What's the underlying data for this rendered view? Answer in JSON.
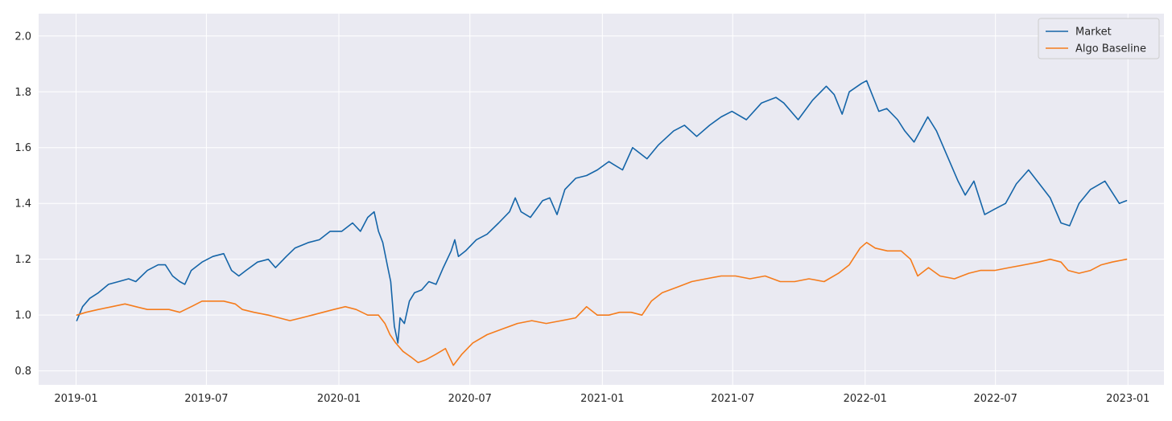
{
  "chart_data": {
    "type": "line",
    "title": "",
    "xlabel": "",
    "ylabel": "",
    "grid": true,
    "legend_position": "top-right",
    "xlim": [
      "2018-11-10",
      "2023-02-20"
    ],
    "ylim": [
      0.75,
      2.08
    ],
    "x_ticks": [
      "2019-01",
      "2019-07",
      "2020-01",
      "2020-07",
      "2021-01",
      "2021-07",
      "2022-01",
      "2022-07",
      "2023-01"
    ],
    "y_ticks": [
      0.8,
      1.0,
      1.2,
      1.4,
      1.6,
      1.8,
      2.0
    ],
    "series": [
      {
        "name": "Market",
        "color": "#1565a8",
        "points": [
          [
            "2019-01-02",
            0.98
          ],
          [
            "2019-01-10",
            1.03
          ],
          [
            "2019-01-20",
            1.06
          ],
          [
            "2019-02-01",
            1.08
          ],
          [
            "2019-02-15",
            1.11
          ],
          [
            "2019-03-01",
            1.12
          ],
          [
            "2019-03-15",
            1.13
          ],
          [
            "2019-03-25",
            1.12
          ],
          [
            "2019-04-10",
            1.16
          ],
          [
            "2019-04-25",
            1.18
          ],
          [
            "2019-05-05",
            1.18
          ],
          [
            "2019-05-15",
            1.14
          ],
          [
            "2019-05-25",
            1.12
          ],
          [
            "2019-06-01",
            1.11
          ],
          [
            "2019-06-10",
            1.16
          ],
          [
            "2019-06-25",
            1.19
          ],
          [
            "2019-07-10",
            1.21
          ],
          [
            "2019-07-25",
            1.22
          ],
          [
            "2019-08-05",
            1.16
          ],
          [
            "2019-08-15",
            1.14
          ],
          [
            "2019-08-25",
            1.16
          ],
          [
            "2019-09-10",
            1.19
          ],
          [
            "2019-09-25",
            1.2
          ],
          [
            "2019-10-05",
            1.17
          ],
          [
            "2019-10-20",
            1.21
          ],
          [
            "2019-11-01",
            1.24
          ],
          [
            "2019-11-20",
            1.26
          ],
          [
            "2019-12-05",
            1.27
          ],
          [
            "2019-12-20",
            1.3
          ],
          [
            "2020-01-05",
            1.3
          ],
          [
            "2020-01-20",
            1.33
          ],
          [
            "2020-01-31",
            1.3
          ],
          [
            "2020-02-10",
            1.35
          ],
          [
            "2020-02-19",
            1.37
          ],
          [
            "2020-02-25",
            1.3
          ],
          [
            "2020-03-02",
            1.26
          ],
          [
            "2020-03-09",
            1.17
          ],
          [
            "2020-03-13",
            1.12
          ],
          [
            "2020-03-18",
            0.96
          ],
          [
            "2020-03-23",
            0.9
          ],
          [
            "2020-03-26",
            0.99
          ],
          [
            "2020-04-01",
            0.97
          ],
          [
            "2020-04-08",
            1.05
          ],
          [
            "2020-04-15",
            1.08
          ],
          [
            "2020-04-25",
            1.09
          ],
          [
            "2020-05-05",
            1.12
          ],
          [
            "2020-05-15",
            1.11
          ],
          [
            "2020-05-25",
            1.17
          ],
          [
            "2020-06-05",
            1.23
          ],
          [
            "2020-06-10",
            1.27
          ],
          [
            "2020-06-15",
            1.21
          ],
          [
            "2020-06-25",
            1.23
          ],
          [
            "2020-07-10",
            1.27
          ],
          [
            "2020-07-25",
            1.29
          ],
          [
            "2020-08-10",
            1.33
          ],
          [
            "2020-08-25",
            1.37
          ],
          [
            "2020-09-02",
            1.42
          ],
          [
            "2020-09-10",
            1.37
          ],
          [
            "2020-09-23",
            1.35
          ],
          [
            "2020-10-10",
            1.41
          ],
          [
            "2020-10-20",
            1.42
          ],
          [
            "2020-10-30",
            1.36
          ],
          [
            "2020-11-10",
            1.45
          ],
          [
            "2020-11-25",
            1.49
          ],
          [
            "2020-12-10",
            1.5
          ],
          [
            "2020-12-25",
            1.52
          ],
          [
            "2021-01-10",
            1.55
          ],
          [
            "2021-01-29",
            1.52
          ],
          [
            "2021-02-12",
            1.6
          ],
          [
            "2021-03-04",
            1.56
          ],
          [
            "2021-03-20",
            1.61
          ],
          [
            "2021-04-10",
            1.66
          ],
          [
            "2021-04-25",
            1.68
          ],
          [
            "2021-05-12",
            1.64
          ],
          [
            "2021-05-30",
            1.68
          ],
          [
            "2021-06-15",
            1.71
          ],
          [
            "2021-06-30",
            1.73
          ],
          [
            "2021-07-20",
            1.7
          ],
          [
            "2021-08-10",
            1.76
          ],
          [
            "2021-08-30",
            1.78
          ],
          [
            "2021-09-10",
            1.76
          ],
          [
            "2021-09-30",
            1.7
          ],
          [
            "2021-10-20",
            1.77
          ],
          [
            "2021-11-08",
            1.82
          ],
          [
            "2021-11-19",
            1.79
          ],
          [
            "2021-11-30",
            1.72
          ],
          [
            "2021-12-10",
            1.8
          ],
          [
            "2021-12-27",
            1.83
          ],
          [
            "2022-01-03",
            1.84
          ],
          [
            "2022-01-20",
            1.73
          ],
          [
            "2022-01-31",
            1.74
          ],
          [
            "2022-02-15",
            1.7
          ],
          [
            "2022-02-25",
            1.66
          ],
          [
            "2022-03-10",
            1.62
          ],
          [
            "2022-03-29",
            1.71
          ],
          [
            "2022-04-10",
            1.66
          ],
          [
            "2022-04-25",
            1.57
          ],
          [
            "2022-05-10",
            1.48
          ],
          [
            "2022-05-20",
            1.43
          ],
          [
            "2022-06-01",
            1.48
          ],
          [
            "2022-06-16",
            1.36
          ],
          [
            "2022-06-30",
            1.38
          ],
          [
            "2022-07-15",
            1.4
          ],
          [
            "2022-07-30",
            1.47
          ],
          [
            "2022-08-16",
            1.52
          ],
          [
            "2022-08-31",
            1.47
          ],
          [
            "2022-09-15",
            1.42
          ],
          [
            "2022-09-30",
            1.33
          ],
          [
            "2022-10-12",
            1.32
          ],
          [
            "2022-10-25",
            1.4
          ],
          [
            "2022-11-10",
            1.45
          ],
          [
            "2022-11-30",
            1.48
          ],
          [
            "2022-12-10",
            1.44
          ],
          [
            "2022-12-20",
            1.4
          ],
          [
            "2022-12-30",
            1.41
          ]
        ]
      },
      {
        "name": "Algo Baseline",
        "color": "#f57c1c",
        "points": [
          [
            "2019-01-02",
            1.0
          ],
          [
            "2019-01-15",
            1.01
          ],
          [
            "2019-02-01",
            1.02
          ],
          [
            "2019-02-20",
            1.03
          ],
          [
            "2019-03-10",
            1.04
          ],
          [
            "2019-03-25",
            1.03
          ],
          [
            "2019-04-10",
            1.02
          ],
          [
            "2019-04-25",
            1.02
          ],
          [
            "2019-05-10",
            1.02
          ],
          [
            "2019-05-25",
            1.01
          ],
          [
            "2019-06-10",
            1.03
          ],
          [
            "2019-06-25",
            1.05
          ],
          [
            "2019-07-10",
            1.05
          ],
          [
            "2019-07-25",
            1.05
          ],
          [
            "2019-08-10",
            1.04
          ],
          [
            "2019-08-20",
            1.02
          ],
          [
            "2019-09-05",
            1.01
          ],
          [
            "2019-09-25",
            1.0
          ],
          [
            "2019-10-10",
            0.99
          ],
          [
            "2019-10-25",
            0.98
          ],
          [
            "2019-11-10",
            0.99
          ],
          [
            "2019-11-25",
            1.0
          ],
          [
            "2019-12-10",
            1.01
          ],
          [
            "2019-12-25",
            1.02
          ],
          [
            "2020-01-10",
            1.03
          ],
          [
            "2020-01-25",
            1.02
          ],
          [
            "2020-02-10",
            1.0
          ],
          [
            "2020-02-25",
            1.0
          ],
          [
            "2020-03-05",
            0.97
          ],
          [
            "2020-03-12",
            0.93
          ],
          [
            "2020-03-20",
            0.9
          ],
          [
            "2020-03-30",
            0.87
          ],
          [
            "2020-04-10",
            0.85
          ],
          [
            "2020-04-20",
            0.83
          ],
          [
            "2020-05-01",
            0.84
          ],
          [
            "2020-05-15",
            0.86
          ],
          [
            "2020-05-28",
            0.88
          ],
          [
            "2020-06-08",
            0.82
          ],
          [
            "2020-06-20",
            0.86
          ],
          [
            "2020-07-05",
            0.9
          ],
          [
            "2020-07-25",
            0.93
          ],
          [
            "2020-08-15",
            0.95
          ],
          [
            "2020-09-05",
            0.97
          ],
          [
            "2020-09-25",
            0.98
          ],
          [
            "2020-10-15",
            0.97
          ],
          [
            "2020-11-05",
            0.98
          ],
          [
            "2020-11-25",
            0.99
          ],
          [
            "2020-12-10",
            1.03
          ],
          [
            "2020-12-25",
            1.0
          ],
          [
            "2021-01-10",
            1.0
          ],
          [
            "2021-01-25",
            1.01
          ],
          [
            "2021-02-10",
            1.01
          ],
          [
            "2021-02-25",
            1.0
          ],
          [
            "2021-03-10",
            1.05
          ],
          [
            "2021-03-25",
            1.08
          ],
          [
            "2021-04-15",
            1.1
          ],
          [
            "2021-05-05",
            1.12
          ],
          [
            "2021-05-25",
            1.13
          ],
          [
            "2021-06-15",
            1.14
          ],
          [
            "2021-07-05",
            1.14
          ],
          [
            "2021-07-25",
            1.13
          ],
          [
            "2021-08-15",
            1.14
          ],
          [
            "2021-09-05",
            1.12
          ],
          [
            "2021-09-25",
            1.12
          ],
          [
            "2021-10-15",
            1.13
          ],
          [
            "2021-11-05",
            1.12
          ],
          [
            "2021-11-25",
            1.15
          ],
          [
            "2021-12-10",
            1.18
          ],
          [
            "2021-12-25",
            1.24
          ],
          [
            "2022-01-03",
            1.26
          ],
          [
            "2022-01-15",
            1.24
          ],
          [
            "2022-02-01",
            1.23
          ],
          [
            "2022-02-20",
            1.23
          ],
          [
            "2022-03-05",
            1.2
          ],
          [
            "2022-03-15",
            1.14
          ],
          [
            "2022-03-30",
            1.17
          ],
          [
            "2022-04-15",
            1.14
          ],
          [
            "2022-05-05",
            1.13
          ],
          [
            "2022-05-25",
            1.15
          ],
          [
            "2022-06-10",
            1.16
          ],
          [
            "2022-06-30",
            1.16
          ],
          [
            "2022-07-20",
            1.17
          ],
          [
            "2022-08-10",
            1.18
          ],
          [
            "2022-08-30",
            1.19
          ],
          [
            "2022-09-15",
            1.2
          ],
          [
            "2022-09-30",
            1.19
          ],
          [
            "2022-10-10",
            1.16
          ],
          [
            "2022-10-25",
            1.15
          ],
          [
            "2022-11-10",
            1.16
          ],
          [
            "2022-11-25",
            1.18
          ],
          [
            "2022-12-10",
            1.19
          ],
          [
            "2022-12-30",
            1.2
          ]
        ]
      }
    ]
  }
}
